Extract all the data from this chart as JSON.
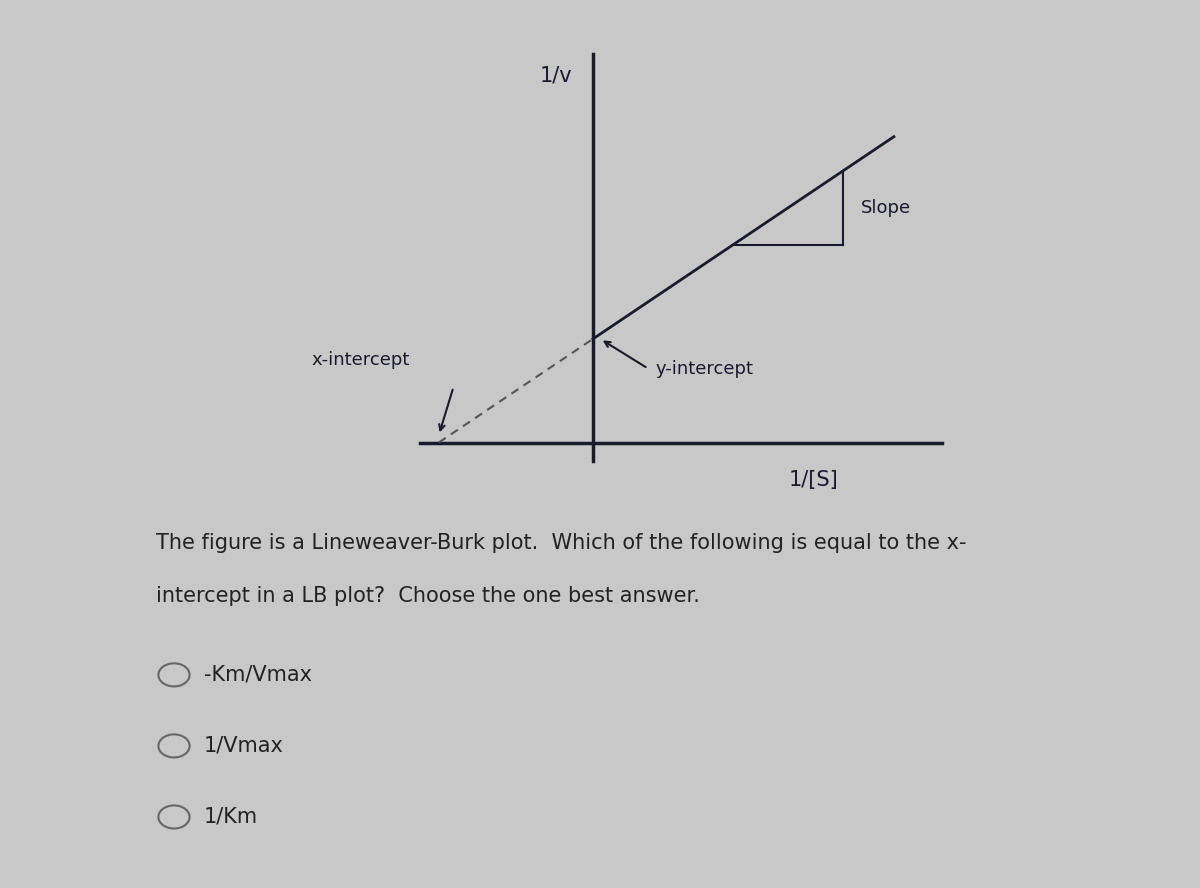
{
  "bg_color": "#c8c8c8",
  "line_color": "#1a1a2e",
  "axis_color": "#1a1a2e",
  "text_color": "#1a1a2e",
  "dashed_color": "#555555",
  "y_axis_label": "1/v",
  "x_axis_label": "1/[S]",
  "slope_label": "Slope",
  "y_intercept_label": "y-intercept",
  "x_intercept_label": "x-intercept",
  "question_line1": "The figure is a Lineweaver-Burk plot.  Which of the following is equal to the x-",
  "question_line2": "intercept in a LB plot?  Choose the one best answer.",
  "choices": [
    "-Km/Vmax",
    "1/Vmax",
    "1/Km"
  ],
  "label_fontsize": 13,
  "question_fontsize": 15,
  "choice_fontsize": 15,
  "axis_label_fontsize": 14
}
